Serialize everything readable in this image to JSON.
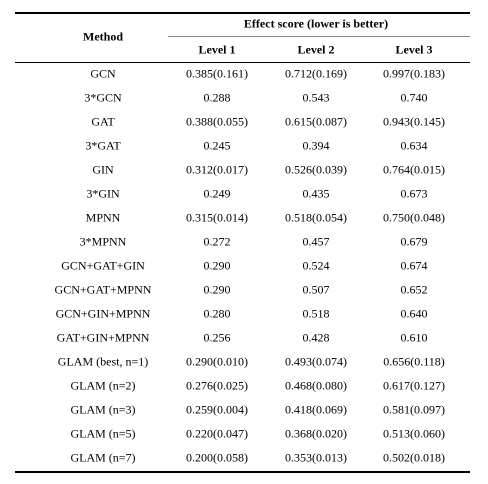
{
  "header": {
    "method": "Method",
    "group": "Effect score (lower is better)",
    "levels": [
      "Level 1",
      "Level 2",
      "Level 3"
    ]
  },
  "table": {
    "rows": [
      [
        "GCN",
        "0.385(0.161)",
        "0.712(0.169)",
        "0.997(0.183)"
      ],
      [
        "3*GCN",
        "0.288",
        "0.543",
        "0.740"
      ],
      [
        "GAT",
        "0.388(0.055)",
        "0.615(0.087)",
        "0.943(0.145)"
      ],
      [
        "3*GAT",
        "0.245",
        "0.394",
        "0.634"
      ],
      [
        "GIN",
        "0.312(0.017)",
        "0.526(0.039)",
        "0.764(0.015)"
      ],
      [
        "3*GIN",
        "0.249",
        "0.435",
        "0.673"
      ],
      [
        "MPNN",
        "0.315(0.014)",
        "0.518(0.054)",
        "0.750(0.048)"
      ],
      [
        "3*MPNN",
        "0.272",
        "0.457",
        "0.679"
      ],
      [
        "GCN+GAT+GIN",
        "0.290",
        "0.524",
        "0.674"
      ],
      [
        "GCN+GAT+MPNN",
        "0.290",
        "0.507",
        "0.652"
      ],
      [
        "GCN+GIN+MPNN",
        "0.280",
        "0.518",
        "0.640"
      ],
      [
        "GAT+GIN+MPNN",
        "0.256",
        "0.428",
        "0.610"
      ],
      [
        "GLAM (best, n=1)",
        "0.290(0.010)",
        "0.493(0.074)",
        "0.656(0.118)"
      ],
      [
        "GLAM (n=2)",
        "0.276(0.025)",
        "0.468(0.080)",
        "0.617(0.127)"
      ],
      [
        "GLAM (n=3)",
        "0.259(0.004)",
        "0.418(0.069)",
        "0.581(0.097)"
      ],
      [
        "GLAM (n=5)",
        "0.220(0.047)",
        "0.368(0.020)",
        "0.513(0.060)"
      ],
      [
        "GLAM (n=7)",
        "0.200(0.058)",
        "0.353(0.013)",
        "0.502(0.018)"
      ]
    ]
  }
}
